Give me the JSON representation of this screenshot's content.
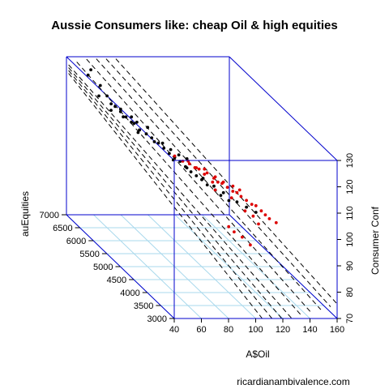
{
  "chart_data": {
    "type": "scatter3d",
    "title": "Aussie Consumers like: cheap Oil & high equities",
    "xlabel": "A$Oil",
    "ylabel": "auEquities",
    "zlabel": "Consumer Conf",
    "xlim": [
      40,
      160
    ],
    "ylim": [
      3000,
      7000
    ],
    "zlim": [
      70,
      130
    ],
    "x_ticks": [
      "40",
      "60",
      "80",
      "100",
      "120",
      "140",
      "160"
    ],
    "y_ticks": [
      "3000",
      "3500",
      "4000",
      "4500",
      "5000",
      "5500",
      "6000",
      "6500",
      "7000"
    ],
    "z_ticks": [
      "70",
      "80",
      "90",
      "100",
      "110",
      "120",
      "130"
    ],
    "series": [
      {
        "color": "#000000",
        "points": [
          [
            48,
            6600,
            127
          ],
          [
            52,
            6700,
            128
          ],
          [
            55,
            6500,
            124
          ],
          [
            50,
            6300,
            122
          ],
          [
            58,
            6400,
            121
          ],
          [
            60,
            6200,
            119
          ],
          [
            62,
            6100,
            118
          ],
          [
            54,
            6050,
            119
          ],
          [
            64,
            6000,
            117
          ],
          [
            66,
            5900,
            116
          ],
          [
            70,
            5800,
            114
          ],
          [
            68,
            5700,
            115
          ],
          [
            72,
            5650,
            114
          ],
          [
            75,
            5600,
            113
          ],
          [
            78,
            5500,
            112
          ],
          [
            80,
            5400,
            111
          ],
          [
            82,
            5300,
            110
          ],
          [
            85,
            5250,
            109
          ],
          [
            88,
            5200,
            108
          ],
          [
            90,
            5100,
            107
          ],
          [
            92,
            5000,
            106
          ],
          [
            95,
            4950,
            105
          ],
          [
            98,
            4900,
            104
          ],
          [
            100,
            4800,
            103
          ],
          [
            104,
            4700,
            102
          ],
          [
            106,
            4600,
            101
          ],
          [
            110,
            4500,
            100
          ],
          [
            60,
            5900,
            118
          ],
          [
            65,
            5750,
            117
          ],
          [
            74,
            5450,
            113
          ],
          [
            83,
            5600,
            111
          ],
          [
            86,
            5450,
            110
          ],
          [
            90,
            5350,
            109
          ],
          [
            95,
            5300,
            108
          ],
          [
            70,
            6100,
            116
          ],
          [
            78,
            5900,
            114
          ],
          [
            57,
            6200,
            120
          ],
          [
            63,
            5500,
            116
          ],
          [
            80,
            5050,
            110
          ],
          [
            88,
            4950,
            108
          ],
          [
            96,
            4750,
            106
          ],
          [
            102,
            4650,
            104
          ],
          [
            108,
            4600,
            102
          ],
          [
            115,
            4450,
            100
          ],
          [
            120,
            4350,
            99
          ],
          [
            125,
            4250,
            98
          ],
          [
            66,
            6300,
            117
          ],
          [
            72,
            6000,
            115
          ]
        ]
      },
      {
        "color": "#dd0000",
        "points": [
          [
            85,
            4700,
            112
          ],
          [
            90,
            4600,
            111
          ],
          [
            92,
            4500,
            110
          ],
          [
            95,
            4550,
            110
          ],
          [
            98,
            4450,
            109
          ],
          [
            100,
            4400,
            108
          ],
          [
            102,
            4350,
            108
          ],
          [
            105,
            4300,
            107
          ],
          [
            88,
            4650,
            111
          ],
          [
            96,
            4400,
            108
          ],
          [
            108,
            4250,
            106
          ],
          [
            110,
            4200,
            106
          ],
          [
            112,
            4150,
            105
          ],
          [
            115,
            4100,
            104
          ],
          [
            118,
            4050,
            103
          ],
          [
            120,
            4000,
            103
          ],
          [
            100,
            4500,
            109
          ],
          [
            104,
            4400,
            108
          ],
          [
            94,
            4600,
            111
          ],
          [
            86,
            4800,
            112
          ],
          [
            106,
            4200,
            104
          ],
          [
            112,
            4000,
            101
          ],
          [
            116,
            3900,
            100
          ],
          [
            118,
            3800,
            98
          ],
          [
            100,
            3800,
            95
          ],
          [
            104,
            3700,
            94
          ],
          [
            108,
            3600,
            92
          ],
          [
            98,
            3900,
            96
          ],
          [
            122,
            3900,
            102
          ],
          [
            124,
            3850,
            101
          ],
          [
            126,
            3800,
            100
          ],
          [
            130,
            3750,
            99
          ],
          [
            80,
            5000,
            112
          ],
          [
            84,
            4900,
            111
          ],
          [
            91,
            4750,
            110
          ],
          [
            114,
            4300,
            106
          ],
          [
            110,
            4350,
            107
          ],
          [
            96,
            4300,
            106
          ]
        ]
      }
    ]
  },
  "credit": "ricardianambivalence.com"
}
